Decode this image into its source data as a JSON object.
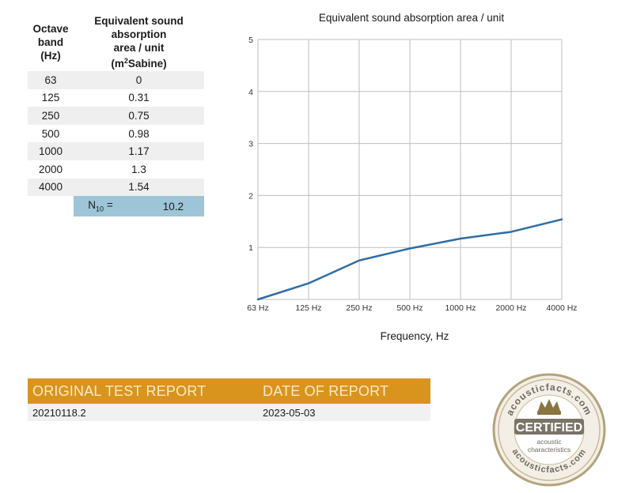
{
  "table": {
    "header_band": [
      "Octave",
      "band",
      "(Hz)"
    ],
    "header_value": [
      "Equivalent sound",
      "absorption",
      "area / unit"
    ],
    "header_unit_pre": "(m",
    "header_unit_sup": "2",
    "header_unit_post": "Sabine)",
    "rows": [
      {
        "band": "63",
        "value": "0"
      },
      {
        "band": "125",
        "value": "0.31"
      },
      {
        "band": "250",
        "value": "0.75"
      },
      {
        "band": "500",
        "value": "0.98"
      },
      {
        "band": "1000",
        "value": "1.17"
      },
      {
        "band": "2000",
        "value": "1.3"
      },
      {
        "band": "4000",
        "value": "1.54"
      }
    ],
    "n_label": "N",
    "n_sub": "10",
    "n_eq": " =",
    "n_value": "10.2"
  },
  "chart_data": {
    "type": "line",
    "title": "Equivalent sound absorption area / unit",
    "xlabel": "Frequency, Hz",
    "ylabel": "",
    "categories": [
      "63 Hz",
      "125 Hz",
      "250 Hz",
      "500 Hz",
      "1000 Hz",
      "2000 Hz",
      "4000 Hz"
    ],
    "yticks": [
      "1",
      "2",
      "3",
      "4",
      "5"
    ],
    "ylim": [
      0,
      5
    ],
    "grid": true,
    "series": [
      {
        "values": [
          0,
          0.31,
          0.75,
          0.98,
          1.17,
          1.3,
          1.54
        ],
        "color": "#2e6da4"
      }
    ]
  },
  "report": {
    "col1_head": "ORIGINAL TEST REPORT",
    "col2_head": "DATE OF REPORT",
    "col1_value": "20210118.2",
    "col2_value": "2023-05-03"
  },
  "seal": {
    "top_text": "acousticfacts.com",
    "bottom_text": "acousticfacts.com",
    "badge": "CERTIFIED",
    "sub1": "acoustic",
    "sub2": "characteristics"
  },
  "colors": {
    "accent": "#d9941e",
    "n_highlight": "#9ec4d8",
    "line": "#2e6da4"
  }
}
